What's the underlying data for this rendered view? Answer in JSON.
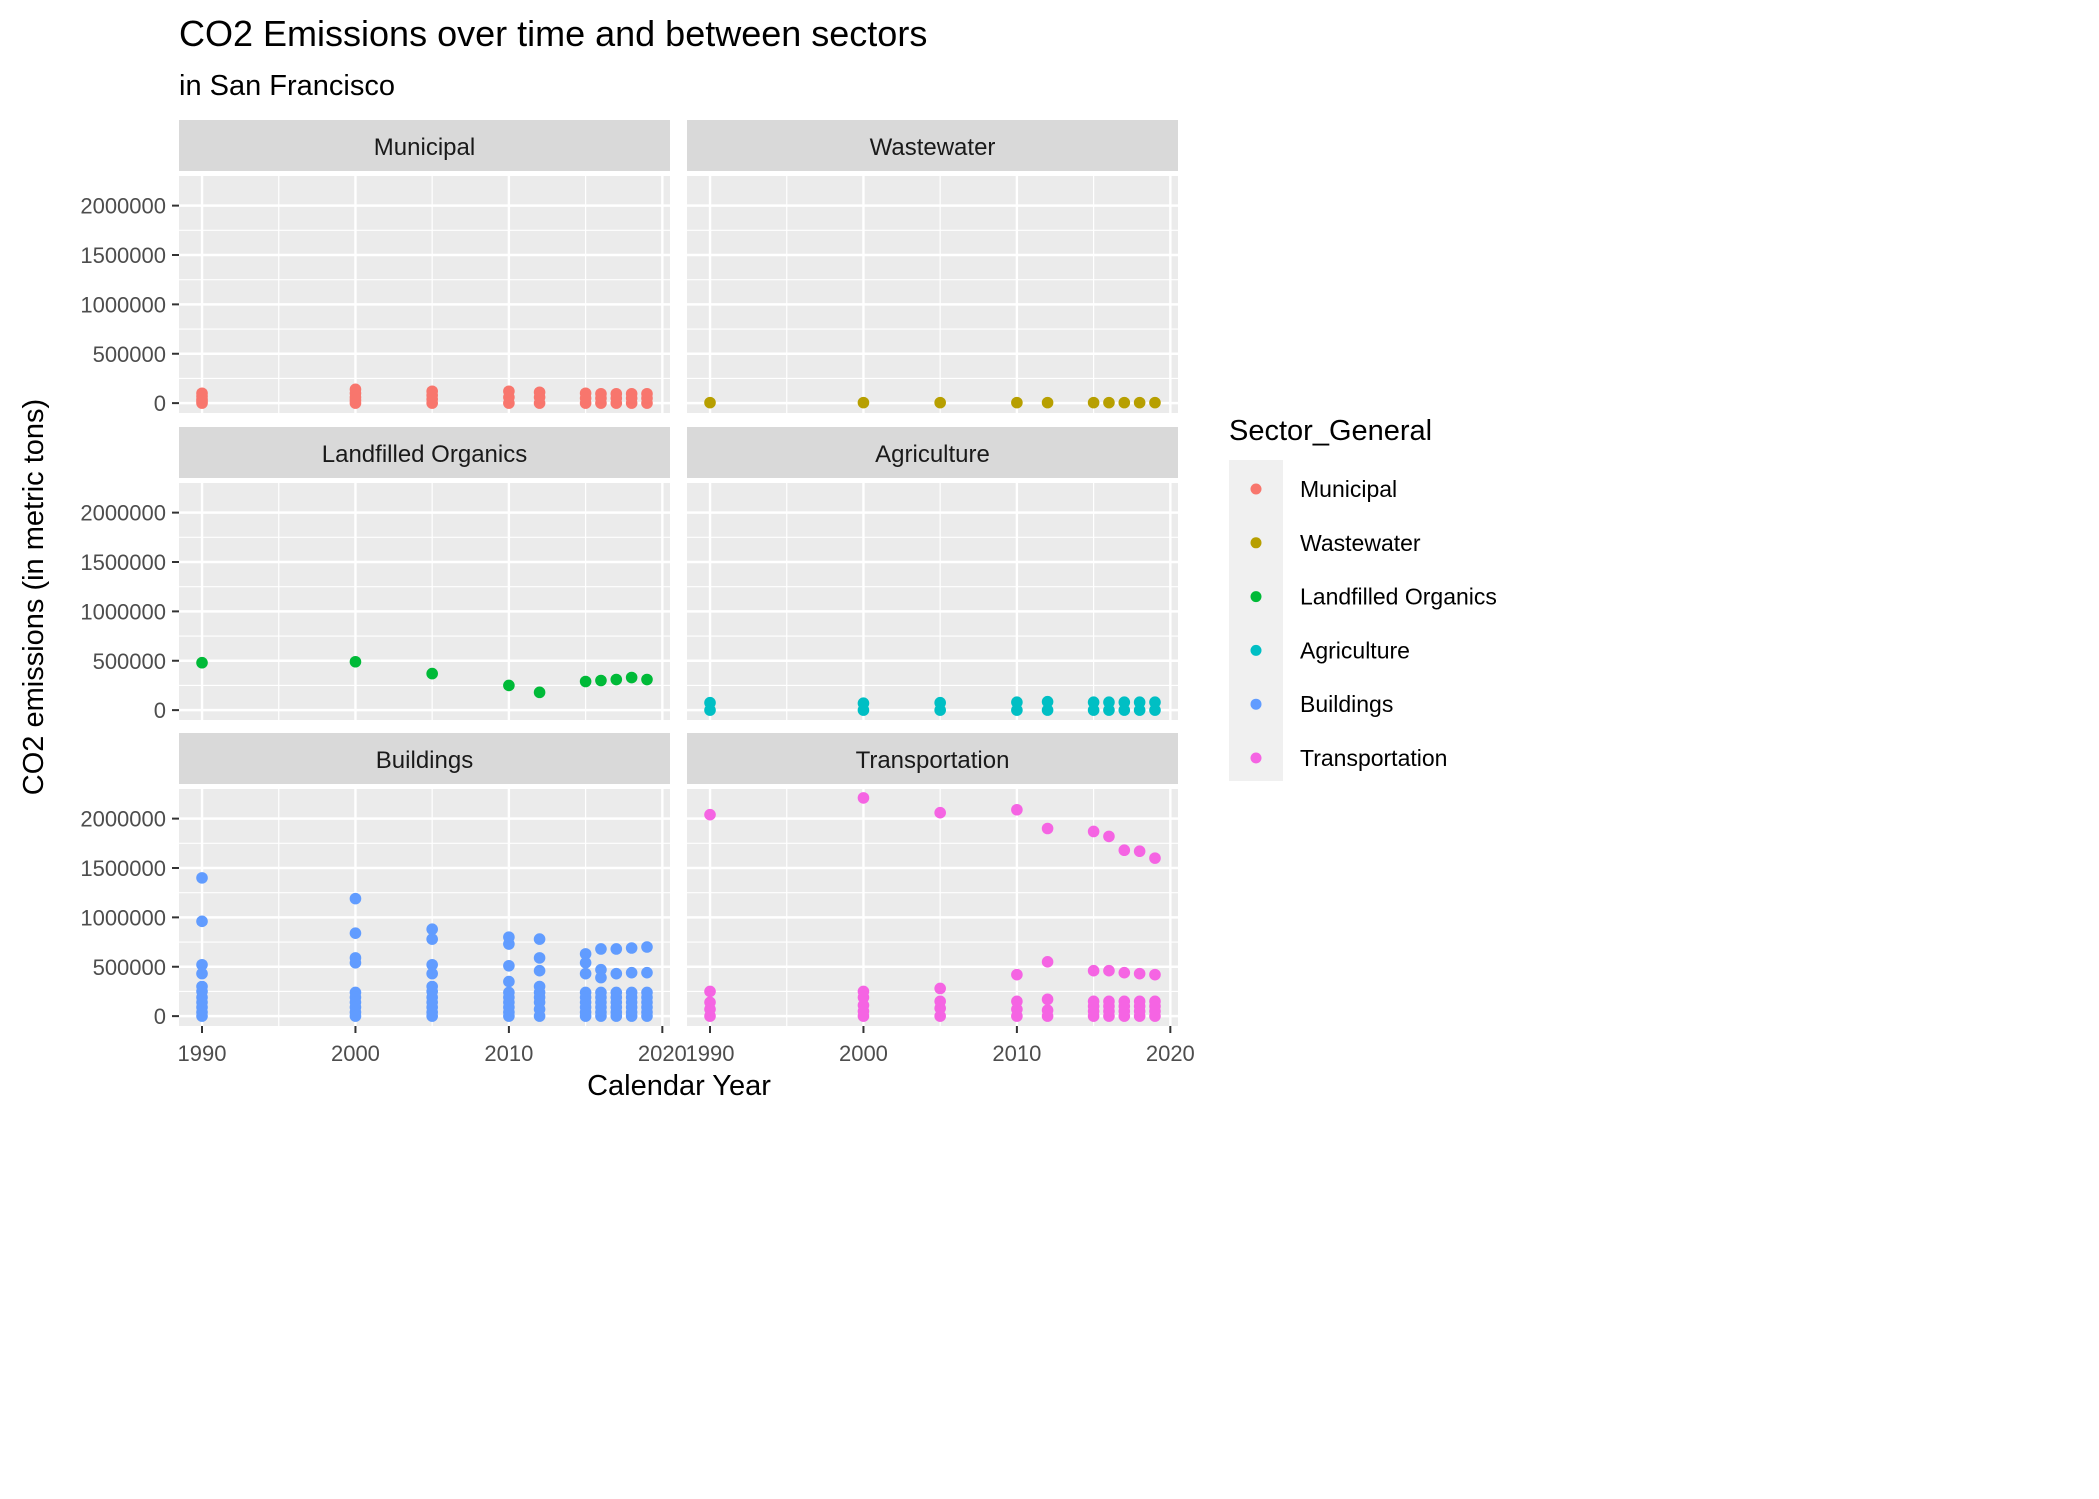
{
  "chart_data": {
    "type": "scatter",
    "title": "CO2 Emissions over time and between sectors",
    "subtitle": "in San Francisco",
    "xlabel": "Calendar Year",
    "ylabel": "CO2 emissions (in metric tons)",
    "xlim": [
      1988.5,
      2020.5
    ],
    "ylim": [
      -100000,
      2300000
    ],
    "x_ticks": [
      1990,
      2000,
      2010,
      2020
    ],
    "y_ticks": [
      0,
      500000,
      1000000,
      1500000,
      2000000
    ],
    "grid": true,
    "facets": "wrap, 2 columns",
    "legend": {
      "title": "Sector_General",
      "placement": "right",
      "items": [
        "Municipal",
        "Wastewater",
        "Landfilled Organics",
        "Agriculture",
        "Buildings",
        "Transportation"
      ]
    },
    "series": [
      {
        "name": "Municipal",
        "color": "#F8766D",
        "x": [
          1990,
          1990,
          1990,
          1990,
          1990,
          2000,
          2000,
          2000,
          2000,
          2000,
          2005,
          2005,
          2005,
          2005,
          2010,
          2010,
          2010,
          2012,
          2012,
          2012,
          2015,
          2015,
          2015,
          2016,
          2016,
          2016,
          2017,
          2017,
          2017,
          2018,
          2018,
          2018,
          2019,
          2019,
          2019
        ],
        "y": [
          100000,
          70000,
          40000,
          20000,
          0,
          140000,
          100000,
          60000,
          30000,
          0,
          120000,
          80000,
          40000,
          0,
          120000,
          60000,
          0,
          110000,
          60000,
          0,
          100000,
          50000,
          0,
          95000,
          50000,
          0,
          95000,
          50000,
          0,
          95000,
          50000,
          0,
          95000,
          50000,
          0
        ]
      },
      {
        "name": "Wastewater",
        "color": "#B79F00",
        "x": [
          1990,
          2000,
          2005,
          2010,
          2012,
          2015,
          2016,
          2017,
          2018,
          2019
        ],
        "y": [
          5000,
          5000,
          5000,
          5000,
          5000,
          5000,
          5000,
          5000,
          5000,
          5000
        ]
      },
      {
        "name": "Landfilled Organics",
        "color": "#00BA38",
        "x": [
          1990,
          2000,
          2005,
          2010,
          2012,
          2015,
          2016,
          2017,
          2018,
          2019
        ],
        "y": [
          480000,
          490000,
          370000,
          250000,
          180000,
          290000,
          300000,
          310000,
          330000,
          310000
        ]
      },
      {
        "name": "Agriculture",
        "color": "#00BFC4",
        "x": [
          1990,
          1990,
          2000,
          2000,
          2005,
          2005,
          2010,
          2010,
          2012,
          2012,
          2015,
          2015,
          2016,
          2016,
          2017,
          2017,
          2018,
          2018,
          2019,
          2019
        ],
        "y": [
          75000,
          0,
          70000,
          0,
          75000,
          0,
          80000,
          0,
          85000,
          0,
          80000,
          0,
          80000,
          0,
          80000,
          0,
          80000,
          0,
          80000,
          0
        ]
      },
      {
        "name": "Buildings",
        "color": "#619CFF",
        "x": [
          1990,
          1990,
          1990,
          1990,
          1990,
          1990,
          1990,
          1990,
          1990,
          1990,
          1990,
          2000,
          2000,
          2000,
          2000,
          2000,
          2000,
          2000,
          2000,
          2000,
          2000,
          2005,
          2005,
          2005,
          2005,
          2005,
          2005,
          2005,
          2005,
          2005,
          2005,
          2005,
          2010,
          2010,
          2010,
          2010,
          2010,
          2010,
          2010,
          2010,
          2010,
          2010,
          2012,
          2012,
          2012,
          2012,
          2012,
          2012,
          2012,
          2012,
          2012,
          2015,
          2015,
          2015,
          2015,
          2015,
          2015,
          2015,
          2015,
          2015,
          2016,
          2016,
          2016,
          2016,
          2016,
          2016,
          2016,
          2016,
          2016,
          2017,
          2017,
          2017,
          2017,
          2017,
          2017,
          2017,
          2017,
          2018,
          2018,
          2018,
          2018,
          2018,
          2018,
          2018,
          2018,
          2019,
          2019,
          2019,
          2019,
          2019,
          2019,
          2019,
          2019
        ],
        "y": [
          1400000,
          960000,
          520000,
          430000,
          300000,
          250000,
          190000,
          140000,
          90000,
          40000,
          0,
          1190000,
          840000,
          590000,
          540000,
          240000,
          190000,
          140000,
          90000,
          40000,
          0,
          880000,
          780000,
          520000,
          430000,
          300000,
          250000,
          190000,
          140000,
          90000,
          40000,
          0,
          800000,
          730000,
          510000,
          350000,
          240000,
          190000,
          140000,
          90000,
          40000,
          0,
          780000,
          590000,
          460000,
          300000,
          240000,
          190000,
          140000,
          70000,
          0,
          630000,
          540000,
          430000,
          240000,
          190000,
          140000,
          90000,
          40000,
          0,
          680000,
          470000,
          390000,
          240000,
          190000,
          140000,
          90000,
          40000,
          0,
          680000,
          430000,
          240000,
          190000,
          140000,
          90000,
          40000,
          0,
          690000,
          440000,
          240000,
          190000,
          140000,
          90000,
          40000,
          0,
          700000,
          440000,
          240000,
          190000,
          140000,
          90000,
          40000,
          0
        ]
      },
      {
        "name": "Transportation",
        "color": "#F564E3",
        "x": [
          1990,
          1990,
          1990,
          1990,
          1990,
          2000,
          2000,
          2000,
          2000,
          2000,
          2000,
          2005,
          2005,
          2005,
          2005,
          2005,
          2010,
          2010,
          2010,
          2010,
          2010,
          2012,
          2012,
          2012,
          2012,
          2012,
          2015,
          2015,
          2015,
          2015,
          2015,
          2015,
          2016,
          2016,
          2016,
          2016,
          2016,
          2016,
          2017,
          2017,
          2017,
          2017,
          2017,
          2017,
          2018,
          2018,
          2018,
          2018,
          2018,
          2018,
          2019,
          2019,
          2019,
          2019,
          2019,
          2019
        ],
        "y": [
          2040000,
          250000,
          140000,
          70000,
          0,
          2210000,
          250000,
          190000,
          110000,
          50000,
          0,
          2060000,
          280000,
          150000,
          80000,
          0,
          2090000,
          420000,
          150000,
          70000,
          0,
          1900000,
          550000,
          170000,
          60000,
          0,
          1870000,
          460000,
          150000,
          100000,
          50000,
          0,
          1820000,
          460000,
          150000,
          100000,
          50000,
          0,
          1680000,
          440000,
          150000,
          100000,
          50000,
          0,
          1670000,
          430000,
          150000,
          100000,
          50000,
          0,
          1600000,
          420000,
          150000,
          100000,
          50000,
          0
        ]
      }
    ]
  }
}
